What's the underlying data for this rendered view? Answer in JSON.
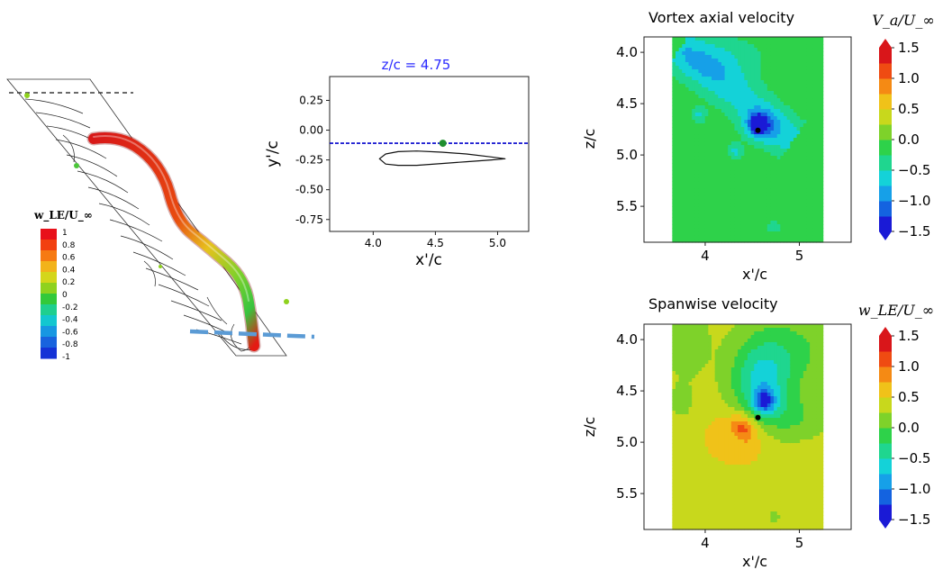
{
  "figure": {
    "wing_panel": {
      "colorbar": {
        "title": "w_LE/U_∞",
        "ticks": [
          "1",
          "0.8",
          "0.6",
          "0.4",
          "0.2",
          "0",
          "-0.2",
          "-0.4",
          "-0.6",
          "-0.8",
          "-1"
        ],
        "colors": [
          "#e8101a",
          "#f24010",
          "#f67a12",
          "#f2b31a",
          "#d4d61a",
          "#8fd21e",
          "#33c93a",
          "#1fcf8f",
          "#13c7d0",
          "#1797e2",
          "#1863de",
          "#1432d6"
        ]
      }
    }
  },
  "chart_data": [
    {
      "type": "line",
      "title": "z/c = 4.75",
      "title_color": "#2a2aff",
      "xlabel": "x'/c",
      "ylabel": "y'/c",
      "xlim": [
        3.65,
        5.25
      ],
      "ylim": [
        -0.85,
        0.45
      ],
      "xticks": [
        "4.0",
        "4.5",
        "5.0"
      ],
      "yticks": [
        "0.25",
        "0.00",
        "-0.25",
        "-0.50",
        "-0.75"
      ],
      "grid": false,
      "series": [
        {
          "kind": "dashed-line",
          "color": "#0000cc",
          "x": [
            3.65,
            5.25
          ],
          "y": [
            -0.11,
            -0.11
          ]
        },
        {
          "kind": "marker",
          "color": "#1f8f2f",
          "x": [
            4.56
          ],
          "y": [
            -0.11
          ]
        }
      ],
      "airfoil_outline": {
        "x": [
          4.05,
          4.1,
          4.2,
          4.35,
          4.55,
          4.75,
          4.95,
          5.06,
          4.95,
          4.75,
          4.55,
          4.35,
          4.2,
          4.1,
          4.05
        ],
        "y": [
          -0.24,
          -0.2,
          -0.18,
          -0.175,
          -0.185,
          -0.2,
          -0.225,
          -0.24,
          -0.25,
          -0.265,
          -0.28,
          -0.295,
          -0.295,
          -0.285,
          -0.24
        ]
      }
    },
    {
      "type": "heatmap",
      "title": "Vortex axial velocity",
      "xlabel": "x'/c",
      "ylabel": "z/c",
      "xlim": [
        3.35,
        5.55
      ],
      "ylim": [
        5.85,
        3.85
      ],
      "y_inverted": true,
      "xticks": [
        "4",
        "5"
      ],
      "yticks": [
        "4.0",
        "4.5",
        "5.0",
        "5.5"
      ],
      "data_extent_x": [
        3.65,
        5.25
      ],
      "colorbar_label": "V_a/U_∞",
      "colorbar_ticks": [
        "1.5",
        "1.0",
        "0.5",
        "0.0",
        "−0.5",
        "−1.0",
        "−1.5"
      ],
      "colorbar_range": [
        -1.5,
        1.5
      ],
      "background_value": -0.05,
      "features": [
        {
          "x": 4.56,
          "z": 4.7,
          "value": -1.25,
          "label": "vortex core minimum"
        },
        {
          "x": 3.93,
          "z": 4.61,
          "value": -0.55
        },
        {
          "x": 4.32,
          "z": 4.97,
          "value": -0.55
        },
        {
          "x": 4.73,
          "z": 5.7,
          "value": -0.4
        }
      ],
      "marker": {
        "x": 4.56,
        "z": 4.76
      }
    },
    {
      "type": "heatmap",
      "title": "Spanwise velocity",
      "xlabel": "x'/c",
      "ylabel": "z/c",
      "xlim": [
        3.35,
        5.55
      ],
      "ylim": [
        5.85,
        3.85
      ],
      "y_inverted": true,
      "xticks": [
        "4",
        "5"
      ],
      "yticks": [
        "4.0",
        "4.5",
        "5.0",
        "5.5"
      ],
      "data_extent_x": [
        3.65,
        5.25
      ],
      "colorbar_label": "w_LE/U_∞",
      "colorbar_ticks": [
        "1.5",
        "1.0",
        "0.5",
        "0.0",
        "−0.5",
        "−1.0",
        "−1.5"
      ],
      "colorbar_range": [
        -1.5,
        1.5
      ],
      "background_value": 0.35,
      "features": [
        {
          "x": 4.63,
          "z": 4.6,
          "value": -1.1,
          "label": "negative lobe"
        },
        {
          "x": 4.4,
          "z": 4.85,
          "value": 1.1,
          "label": "positive lobe"
        },
        {
          "x": 4.3,
          "z": 5.0,
          "value": -0.1
        }
      ],
      "marker": {
        "x": 4.56,
        "z": 4.76
      }
    }
  ]
}
